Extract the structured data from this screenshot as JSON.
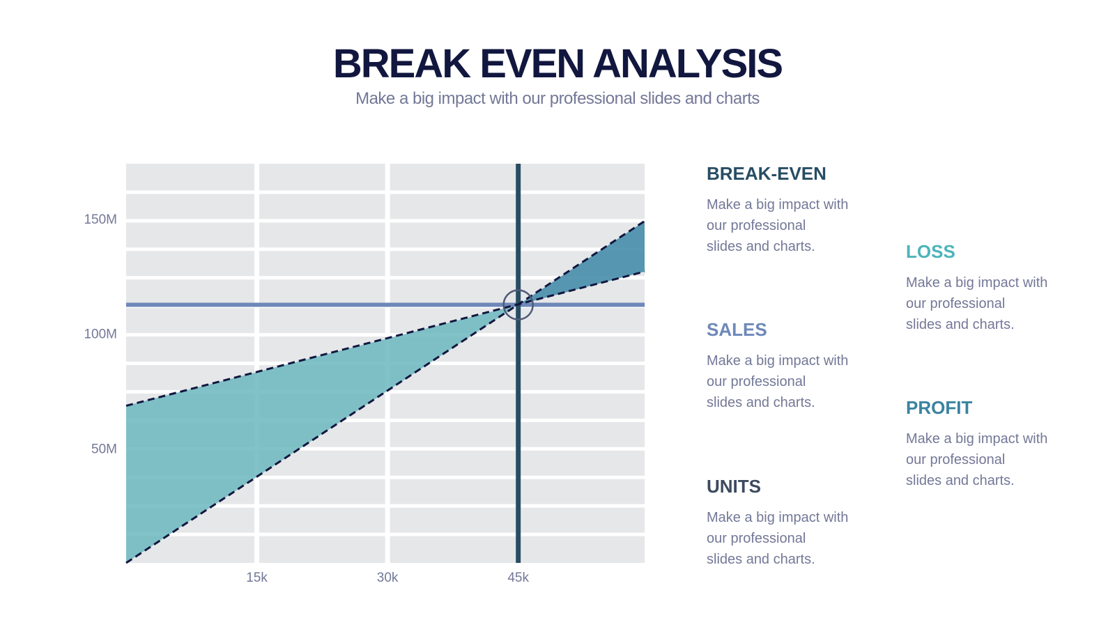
{
  "header": {
    "title": "BREAK EVEN ANALYSIS",
    "subtitle": "Make a big impact with our professional slides and charts"
  },
  "chart_data": {
    "type": "line",
    "x_ticks": [
      15000,
      30000,
      45000
    ],
    "x_tick_labels": [
      "15k",
      "30k",
      "45k"
    ],
    "y_ticks": [
      50000000,
      100000000,
      150000000
    ],
    "y_tick_labels": [
      "50M",
      "100M",
      "150M"
    ],
    "xlim": [
      0,
      59500
    ],
    "ylim": [
      0,
      174000000
    ],
    "grid": true,
    "series": [
      {
        "id": "sales",
        "x": [
          0,
          59500
        ],
        "y": [
          0,
          149000000
        ],
        "color": "#12173f",
        "dashed": true
      },
      {
        "id": "costs",
        "x": [
          0,
          59500
        ],
        "y": [
          68500000,
          127000000
        ],
        "color": "#12173f",
        "dashed": true
      }
    ],
    "break_even": {
      "x": 45000,
      "y": 112500000
    },
    "loss_region_color": "#6fbac0",
    "profit_region_color": "#4a8fab",
    "break_even_hline_color": "#6e88b8",
    "break_even_vline_color": "#284d63",
    "grid_bg_color": "#e6e7e9"
  },
  "legend": {
    "items": [
      {
        "key": "break_even",
        "title": "BREAK-EVEN",
        "desc": [
          "Make a big impact with",
          "our professional",
          "slides and charts."
        ],
        "color": "#284d63"
      },
      {
        "key": "sales",
        "title": "SALES",
        "desc": [
          "Make a big impact with",
          "our professional",
          "slides and charts."
        ],
        "color": "#6e88b8"
      },
      {
        "key": "units",
        "title": "UNITS",
        "desc": [
          "Make a big impact with",
          "our professional",
          "slides and charts."
        ],
        "color": "#3c4a5f"
      },
      {
        "key": "loss",
        "title": "LOSS",
        "desc": [
          "Make a big impact with",
          "our professional",
          "slides and charts."
        ],
        "color": "#4cb4ba"
      },
      {
        "key": "profit",
        "title": "PROFIT",
        "desc": [
          "Make a big impact with",
          "our professional",
          "slides and charts."
        ],
        "color": "#3a839f"
      }
    ]
  }
}
